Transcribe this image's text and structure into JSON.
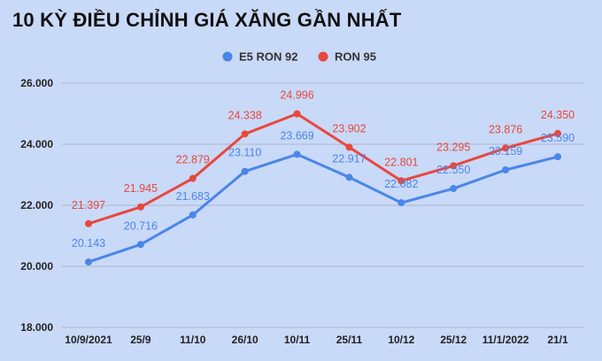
{
  "chart_data": {
    "type": "line",
    "title": "10 KỲ ĐIỀU CHỈNH GIÁ XĂNG GẦN NHẤT",
    "xlabel": "",
    "ylabel": "",
    "categories": [
      "10/9/2021",
      "25/9",
      "11/10",
      "26/10",
      "10/11",
      "25/11",
      "10/12",
      "25/12",
      "11/1/2022",
      "21/1"
    ],
    "series": [
      {
        "name": "E5 RON 92",
        "color": "#4a86e8",
        "values": [
          20143,
          20716,
          21683,
          23110,
          23669,
          22917,
          22082,
          22550,
          23159,
          23590
        ],
        "labels": [
          "20.143",
          "20.716",
          "21.683",
          "23.110",
          "23.669",
          "22.917",
          "22.082",
          "22.550",
          "23.159",
          "23.590"
        ]
      },
      {
        "name": "RON 95",
        "color": "#e8473d",
        "values": [
          21397,
          21945,
          22879,
          24338,
          24996,
          23902,
          22801,
          23295,
          23876,
          24350
        ],
        "labels": [
          "21.397",
          "21.945",
          "22.879",
          "24.338",
          "24.996",
          "23.902",
          "22.801",
          "23.295",
          "23.876",
          "24.350"
        ]
      }
    ],
    "ylim": [
      18000,
      26000
    ],
    "yticks": [
      18000,
      20000,
      22000,
      24000,
      26000
    ],
    "ytick_labels": [
      "18.000",
      "20.000",
      "22.000",
      "24.000",
      "26.000"
    ],
    "grid": true,
    "legend_position": "top-center"
  }
}
